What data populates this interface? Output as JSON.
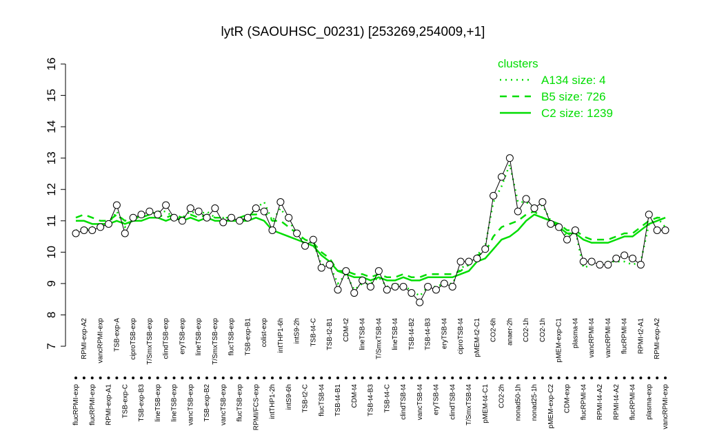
{
  "chart_data": {
    "type": "line",
    "title": "lytR (SAOUHSC_00231) [253269,254009,+1]",
    "categories": [
      "flucRPMI-exp",
      "RPMI-exp-A2",
      "flucRPMI-exp",
      "vancRPMI-exp",
      "RPMI-exp-A1",
      "TSB-exp-A",
      "TSB-exp-C",
      "ciproTSB-exp",
      "TSB-exp-B3",
      "T/SmxTSB-exp",
      "lineTSB-exp",
      "clindTSB-exp",
      "lineTSB-exp",
      "eryTSB-exp",
      "vancTSB-exp",
      "lineTSB-exp",
      "TSB-exp-B2",
      "T/SmxTSB-exp",
      "vancTSB-exp",
      "flucTSB-exp",
      "flucTSB-exp",
      "TSB-exp-B1",
      "RPMI/FCS-exp",
      "colist-exp",
      "intTHP1-2h",
      "intTHP1-6h",
      "intS9-6h",
      "intS9-2h",
      "TSB-t2-C",
      "TSB-t4-C",
      "flucTSB-t4",
      "TSB-t2-B1",
      "TSB-t4-B1",
      "CDM-t2",
      "CDM-t4",
      "lineTSB-t4",
      "TSB-t4-B3",
      "T/SmxTSB-t4",
      "TSB-t4-C",
      "lineTSB-t4",
      "clindTSB-t4",
      "TSB-t4-B2",
      "vancTSB-t4",
      "TSB-t4-B3",
      "eryTSB-t4",
      "eryTSB-t4",
      "clindTSB-t4",
      "ciproTSB-t4",
      "T/SmxTSB-t4",
      "pMEM-t2-C1",
      "pMEM-t4-C1",
      "CO2-6h",
      "CO2-2h",
      "anaer-2h",
      "nonad50-1h",
      "CO2-1h",
      "nonad25-1h",
      "CO2-1h",
      "pMEM-exp-C2",
      "pMEM-exp-C1",
      "CDM-exp",
      "plasma-t4",
      "flucRPMI-t4",
      "vancRPMI-t4",
      "RPMI-t4-A2",
      "vancRPMI-t4",
      "RPMI-t4-A2",
      "flucRPMI-t4",
      "flucRPMI-t4",
      "RPMI-t2-A1",
      "plasma-exp",
      "RPMI-exp-A2",
      "vancRPMI-exp"
    ],
    "values": [
      10.6,
      10.7,
      10.7,
      10.8,
      10.9,
      11.5,
      10.6,
      11.1,
      11.2,
      11.3,
      11.2,
      11.5,
      11.1,
      11.0,
      11.4,
      11.3,
      11.1,
      11.4,
      10.95,
      11.1,
      11.0,
      11.1,
      11.4,
      11.3,
      10.7,
      11.6,
      11.1,
      10.6,
      10.2,
      10.4,
      9.5,
      9.6,
      8.8,
      9.4,
      8.7,
      9.1,
      8.9,
      9.4,
      8.8,
      8.9,
      8.9,
      8.7,
      8.4,
      8.9,
      8.8,
      9.0,
      8.9,
      9.7,
      9.7,
      9.8,
      10.1,
      11.8,
      12.4,
      13.0,
      11.3,
      11.7,
      11.4,
      11.6,
      10.9,
      10.8,
      10.4,
      10.7,
      9.7,
      9.7,
      9.6,
      9.6,
      9.8,
      9.9,
      9.8,
      9.6,
      11.2,
      10.7,
      10.7
    ],
    "color": "#000000",
    "series": [
      {
        "name": "A134 size: 4",
        "color": "#00dd00",
        "style": "dotted",
        "values": [
          10.7,
          10.7,
          10.8,
          10.8,
          10.9,
          11.3,
          10.8,
          11.0,
          11.2,
          11.2,
          11.3,
          11.3,
          11.1,
          11.1,
          11.3,
          11.2,
          11.3,
          11.1,
          11.1,
          11.1,
          11.0,
          11.1,
          11.4,
          11.6,
          11.0,
          11.4,
          11.0,
          10.6,
          10.3,
          10.3,
          9.6,
          9.6,
          9.0,
          9.3,
          8.8,
          9.0,
          9.0,
          9.2,
          8.9,
          9.0,
          8.9,
          8.8,
          8.6,
          8.9,
          8.9,
          9.0,
          9.0,
          9.5,
          9.6,
          9.9,
          10.2,
          11.6,
          12.1,
          12.8,
          11.6,
          11.6,
          11.4,
          11.5,
          11.0,
          10.8,
          10.5,
          10.7,
          9.5,
          9.6,
          9.6,
          9.7,
          9.7,
          9.7,
          9.6,
          9.7,
          10.9,
          11.1,
          10.8
        ]
      },
      {
        "name": "B5 size: 726",
        "color": "#00dd00",
        "style": "dashed",
        "values": [
          11.1,
          11.2,
          11.1,
          11.0,
          11.0,
          11.2,
          11.0,
          11.1,
          11.1,
          11.2,
          11.2,
          11.1,
          11.2,
          11.1,
          11.2,
          11.1,
          11.2,
          11.1,
          11.1,
          11.1,
          11.1,
          11.2,
          11.2,
          11.3,
          11.0,
          11.0,
          10.8,
          10.6,
          10.4,
          10.3,
          10.0,
          9.8,
          9.4,
          9.4,
          9.3,
          9.3,
          9.2,
          9.3,
          9.2,
          9.2,
          9.3,
          9.2,
          9.2,
          9.3,
          9.3,
          9.3,
          9.3,
          9.4,
          9.6,
          9.9,
          10.0,
          10.5,
          10.8,
          10.9,
          11.0,
          11.2,
          11.3,
          11.1,
          11.0,
          10.9,
          10.7,
          10.7,
          10.5,
          10.4,
          10.4,
          10.4,
          10.5,
          10.6,
          10.6,
          10.8,
          11.0,
          11.1,
          11.1
        ]
      },
      {
        "name": "C2 size: 1239",
        "color": "#00dd00",
        "style": "solid",
        "values": [
          11.0,
          11.0,
          10.9,
          10.9,
          10.9,
          11.0,
          10.9,
          11.0,
          11.0,
          11.1,
          11.1,
          11.0,
          11.1,
          11.0,
          11.1,
          11.0,
          11.1,
          11.0,
          11.0,
          11.0,
          11.0,
          11.0,
          11.1,
          11.0,
          10.7,
          10.6,
          10.5,
          10.4,
          10.3,
          10.2,
          9.9,
          9.7,
          9.4,
          9.3,
          9.2,
          9.2,
          9.1,
          9.2,
          9.1,
          9.1,
          9.2,
          9.1,
          9.1,
          9.2,
          9.2,
          9.2,
          9.2,
          9.3,
          9.4,
          9.7,
          9.8,
          10.1,
          10.4,
          10.5,
          10.7,
          11.0,
          11.2,
          11.1,
          11.0,
          10.8,
          10.6,
          10.6,
          10.4,
          10.3,
          10.3,
          10.3,
          10.4,
          10.5,
          10.5,
          10.7,
          10.9,
          11.0,
          11.1
        ]
      }
    ],
    "legend_title": "clusters",
    "legend_position": "topright",
    "ylim": [
      7,
      16
    ],
    "yticks": [
      7,
      8,
      9,
      10,
      11,
      12,
      13,
      14,
      15,
      16
    ]
  }
}
